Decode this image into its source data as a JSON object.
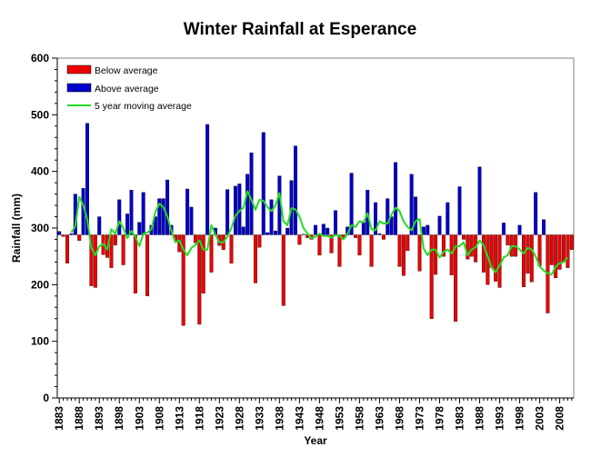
{
  "chart_data": {
    "type": "bar",
    "title": "Winter Rainfall at Esperance",
    "xlabel": "Year",
    "ylabel": "Rainfall (mm)",
    "ylim": [
      0,
      600
    ],
    "yticks": [
      0,
      100,
      200,
      300,
      400,
      500,
      600
    ],
    "baseline": 288,
    "xtick_labels": [
      "1883",
      "1888",
      "1893",
      "1898",
      "1903",
      "1908",
      "1913",
      "1918",
      "1923",
      "1928",
      "1933",
      "1938",
      "1943",
      "1948",
      "1953",
      "1958",
      "1963",
      "1968",
      "1973",
      "1978",
      "1983",
      "1988",
      "1993",
      "1998",
      "2003",
      "2008"
    ],
    "legend_position": "top-left",
    "grid": false,
    "legend": [
      {
        "label": "Below average",
        "color": "#ee0000",
        "kind": "bar"
      },
      {
        "label": "Above average",
        "color": "#0000cc",
        "kind": "bar"
      },
      {
        "label": "5 year moving average",
        "color": "#22dd22",
        "kind": "line"
      }
    ],
    "series": [
      {
        "name": "Winter rainfall",
        "x": [
          1883,
          1884,
          1885,
          1886,
          1887,
          1888,
          1889,
          1890,
          1891,
          1892,
          1893,
          1894,
          1895,
          1896,
          1897,
          1898,
          1899,
          1900,
          1901,
          1902,
          1903,
          1904,
          1905,
          1906,
          1907,
          1908,
          1909,
          1910,
          1911,
          1912,
          1913,
          1914,
          1915,
          1916,
          1917,
          1918,
          1919,
          1920,
          1921,
          1922,
          1923,
          1924,
          1925,
          1926,
          1927,
          1928,
          1929,
          1930,
          1931,
          1932,
          1933,
          1934,
          1935,
          1936,
          1937,
          1938,
          1939,
          1940,
          1941,
          1942,
          1943,
          1944,
          1945,
          1946,
          1947,
          1948,
          1949,
          1950,
          1951,
          1952,
          1953,
          1954,
          1955,
          1956,
          1957,
          1958,
          1959,
          1960,
          1961,
          1962,
          1963,
          1964,
          1965,
          1966,
          1967,
          1968,
          1969,
          1970,
          1971,
          1972,
          1973,
          1974,
          1975,
          1976,
          1977,
          1978,
          1979,
          1980,
          1981,
          1982,
          1983,
          1984,
          1985,
          1986,
          1987,
          1988,
          1989,
          1990,
          1991,
          1992,
          1993,
          1994,
          1995,
          1996,
          1997,
          1998,
          1999,
          2000,
          2001,
          2002,
          2003,
          2004,
          2005,
          2006,
          2007,
          2008,
          2009,
          2010,
          2011
        ],
        "values": [
          294,
          285,
          238,
          290,
          360,
          278,
          370,
          485,
          198,
          195,
          320,
          253,
          248,
          230,
          270,
          350,
          235,
          325,
          367,
          185,
          310,
          363,
          180,
          305,
          320,
          352,
          352,
          385,
          305,
          278,
          258,
          128,
          369,
          337,
          274,
          130,
          185,
          483,
          222,
          300,
          269,
          262,
          368,
          238,
          374,
          378,
          302,
          395,
          433,
          203,
          266,
          469,
          292,
          350,
          295,
          392,
          163,
          300,
          384,
          445,
          271,
          289,
          283,
          280,
          305,
          252,
          307,
          300,
          256,
          331,
          232,
          283,
          302,
          397,
          283,
          252,
          310,
          367,
          232,
          345,
          290,
          280,
          352,
          320,
          416,
          232,
          216,
          260,
          395,
          355,
          224,
          302,
          305,
          140,
          218,
          321,
          250,
          345,
          217,
          135,
          373,
          280,
          245,
          250,
          240,
          408,
          222,
          200,
          230,
          206,
          195,
          309,
          270,
          250,
          250,
          305,
          196,
          220,
          205,
          363,
          233,
          315,
          150,
          235,
          212,
          227,
          240,
          230,
          262
        ]
      },
      {
        "name": "5 year moving average",
        "x": [
          1886,
          1887,
          1888,
          1889,
          1890,
          1891,
          1892,
          1893,
          1894,
          1895,
          1896,
          1897,
          1898,
          1899,
          1900,
          1901,
          1902,
          1903,
          1904,
          1905,
          1906,
          1907,
          1908,
          1909,
          1910,
          1911,
          1912,
          1913,
          1914,
          1915,
          1916,
          1917,
          1918,
          1919,
          1920,
          1921,
          1922,
          1923,
          1924,
          1925,
          1926,
          1927,
          1928,
          1929,
          1930,
          1931,
          1932,
          1933,
          1934,
          1935,
          1936,
          1937,
          1938,
          1939,
          1940,
          1941,
          1942,
          1943,
          1944,
          1945,
          1946,
          1947,
          1948,
          1949,
          1950,
          1951,
          1952,
          1953,
          1954,
          1955,
          1956,
          1957,
          1958,
          1959,
          1960,
          1961,
          1962,
          1963,
          1964,
          1965,
          1966,
          1967,
          1968,
          1969,
          1970,
          1971,
          1972,
          1973,
          1974,
          1975,
          1976,
          1977,
          1978,
          1979,
          1980,
          1981,
          1982,
          1983,
          1984,
          1985,
          1986,
          1987,
          1988,
          1989,
          1990,
          1991,
          1992,
          1993,
          1994,
          1995,
          1996,
          1997,
          1998,
          1999,
          2000,
          2001,
          2002,
          2003,
          2004,
          2005,
          2006,
          2007,
          2008,
          2009,
          2010
        ],
        "values": [
          292,
          303,
          355,
          340,
          315,
          265,
          252,
          268,
          272,
          262,
          298,
          290,
          312,
          300,
          282,
          295,
          285,
          268,
          290,
          292,
          298,
          328,
          343,
          337,
          320,
          295,
          275,
          278,
          262,
          252,
          265,
          270,
          278,
          262,
          262,
          305,
          288,
          275,
          275,
          285,
          300,
          322,
          330,
          336,
          365,
          350,
          332,
          350,
          348,
          337,
          330,
          340,
          362,
          312,
          305,
          335,
          333,
          320,
          300,
          290,
          282,
          285,
          290,
          286,
          286,
          283,
          288,
          286,
          280,
          290,
          305,
          302,
          312,
          310,
          326,
          298,
          296,
          312,
          308,
          308,
          324,
          336,
          330,
          312,
          302,
          296,
          312,
          316,
          264,
          252,
          262,
          262,
          248,
          258,
          262,
          255,
          268,
          268,
          275,
          252,
          262,
          266,
          278,
          270,
          250,
          230,
          222,
          234,
          248,
          252,
          268,
          268,
          262,
          255,
          265,
          262,
          250,
          232,
          225,
          220,
          218,
          232,
          238,
          240,
          248
        ]
      }
    ]
  }
}
